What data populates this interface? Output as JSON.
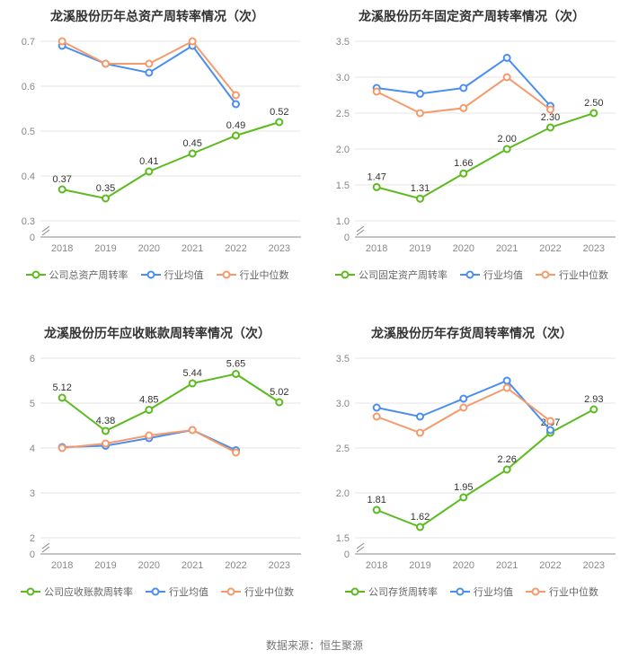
{
  "footer": "数据来源：恒生聚源",
  "colors": {
    "company": "#5bbb1e",
    "industry_avg": "#4a8ef0",
    "industry_median": "#f59a6a",
    "grid": "#e6e6e6",
    "axis": "#888888",
    "text": "#333333",
    "tick_text": "#888888",
    "background": "#ffffff"
  },
  "marker": {
    "radius": 3.5,
    "line_width": 2,
    "fill": "#ffffff"
  },
  "title_fontsize": 14,
  "label_fontsize": 11,
  "legend_fontsize": 11,
  "charts": [
    {
      "title": "龙溪股份历年总资产周转率情况（次）",
      "legend": [
        "公司总资产周转率",
        "行业均值",
        "行业中位数"
      ],
      "categories": [
        "2018",
        "2019",
        "2020",
        "2021",
        "2022",
        "2023"
      ],
      "y": {
        "min": 0,
        "max": 0.7,
        "step": 0.1,
        "break_from": 0,
        "break_to": 0.3,
        "decimals": 1
      },
      "series": [
        {
          "key": "company",
          "data": [
            0.37,
            0.35,
            0.41,
            0.45,
            0.49,
            0.52
          ],
          "show_labels": true
        },
        {
          "key": "industry_avg",
          "data": [
            0.69,
            0.65,
            0.63,
            0.69,
            0.56,
            null
          ],
          "show_labels": false
        },
        {
          "key": "industry_median",
          "data": [
            0.7,
            0.65,
            0.65,
            0.7,
            0.58,
            null
          ],
          "show_labels": false
        }
      ]
    },
    {
      "title": "龙溪股份历年固定资产周转率情况（次）",
      "legend": [
        "公司固定资产周转率",
        "行业均值",
        "行业中位数"
      ],
      "categories": [
        "2018",
        "2019",
        "2020",
        "2021",
        "2022",
        "2023"
      ],
      "y": {
        "min": 0,
        "max": 3.5,
        "step": 0.5,
        "break_from": 0,
        "break_to": 1,
        "decimals": 1
      },
      "series": [
        {
          "key": "company",
          "data": [
            1.47,
            1.31,
            1.66,
            2.0,
            2.3,
            2.5
          ],
          "show_labels": true
        },
        {
          "key": "industry_avg",
          "data": [
            2.85,
            2.77,
            2.85,
            3.27,
            2.6,
            null
          ],
          "show_labels": false
        },
        {
          "key": "industry_median",
          "data": [
            2.8,
            2.5,
            2.57,
            3.0,
            2.55,
            null
          ],
          "show_labels": false
        }
      ]
    },
    {
      "title": "龙溪股份历年应收账款周转率情况（次）",
      "legend": [
        "公司应收账款周转率",
        "行业均值",
        "行业中位数"
      ],
      "categories": [
        "2018",
        "2019",
        "2020",
        "2021",
        "2022",
        "2023"
      ],
      "y": {
        "min": 0,
        "max": 6,
        "step": 1,
        "break_from": 0,
        "break_to": 2,
        "decimals": 0
      },
      "series": [
        {
          "key": "company",
          "data": [
            5.12,
            4.38,
            4.85,
            5.44,
            5.65,
            5.02
          ],
          "show_labels": true
        },
        {
          "key": "industry_avg",
          "data": [
            4.02,
            4.05,
            4.22,
            4.4,
            3.95,
            null
          ],
          "show_labels": false
        },
        {
          "key": "industry_median",
          "data": [
            4.0,
            4.1,
            4.28,
            4.4,
            3.9,
            null
          ],
          "show_labels": false
        }
      ]
    },
    {
      "title": "龙溪股份历年存货周转率情况（次）",
      "legend": [
        "公司存货周转率",
        "行业均值",
        "行业中位数"
      ],
      "categories": [
        "2018",
        "2019",
        "2020",
        "2021",
        "2022",
        "2023"
      ],
      "y": {
        "min": 0,
        "max": 3.5,
        "step": 0.5,
        "break_from": 0,
        "break_to": 1.5,
        "decimals": 1
      },
      "series": [
        {
          "key": "company",
          "data": [
            1.81,
            1.62,
            1.95,
            2.26,
            2.67,
            2.93
          ],
          "show_labels": true
        },
        {
          "key": "industry_avg",
          "data": [
            2.95,
            2.85,
            3.05,
            3.25,
            2.7,
            null
          ],
          "show_labels": false
        },
        {
          "key": "industry_median",
          "data": [
            2.85,
            2.67,
            2.95,
            3.17,
            2.8,
            null
          ],
          "show_labels": false
        }
      ]
    }
  ]
}
